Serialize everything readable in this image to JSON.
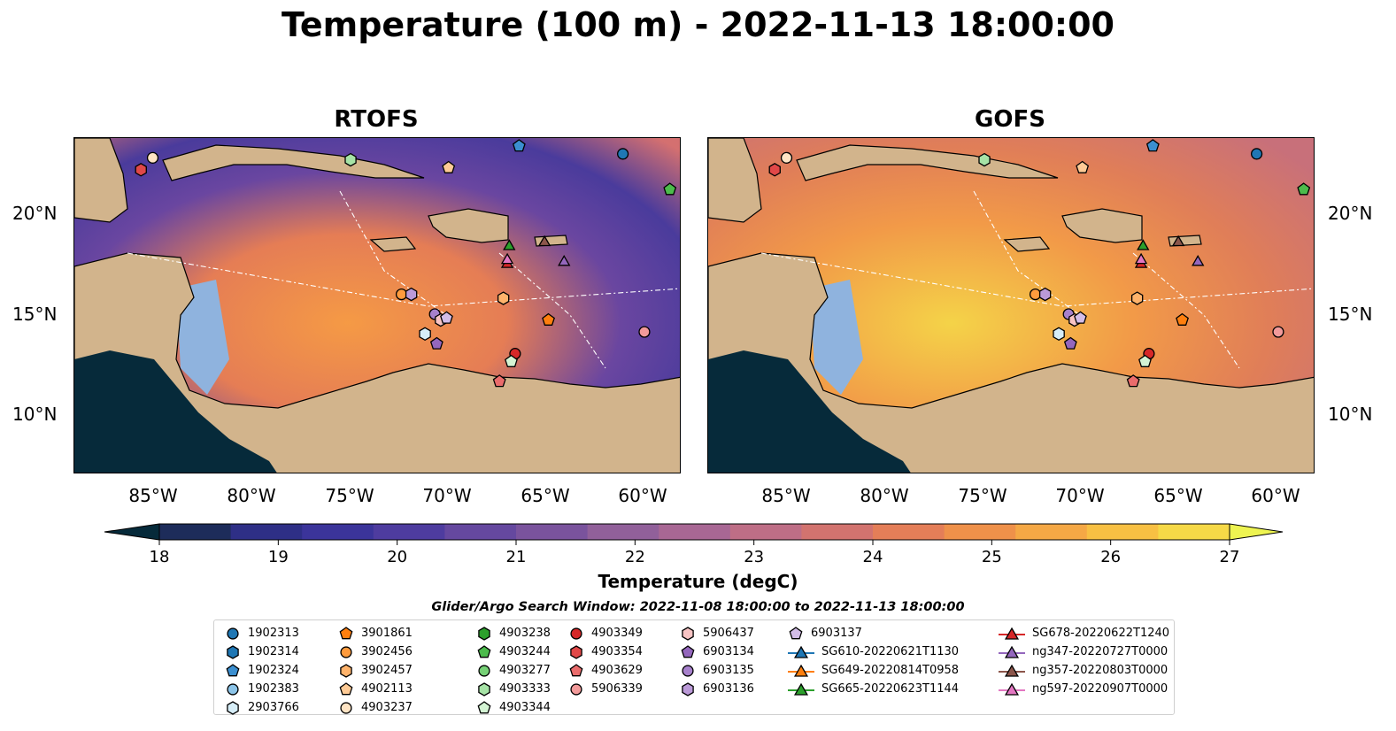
{
  "title": "Temperature (100 m) - 2022-11-13 18:00:00",
  "panels": [
    {
      "title": "RTOFS"
    },
    {
      "title": "GOFS"
    }
  ],
  "lat_labels": [
    "20°N",
    "15°N",
    "10°N"
  ],
  "lon_labels": [
    "85°W",
    "80°W",
    "75°W",
    "70°W",
    "65°W",
    "60°W"
  ],
  "colorbar": {
    "label": "Temperature (degC)",
    "ticks": [
      "18",
      "19",
      "20",
      "21",
      "22",
      "23",
      "24",
      "25",
      "26",
      "27"
    ],
    "range": [
      18,
      27
    ],
    "colors": [
      "#062a3a",
      "#1d2c5a",
      "#2e2f86",
      "#3b349a",
      "#4e3c9f",
      "#65489f",
      "#7a539d",
      "#91609a",
      "#a86794",
      "#be6e86",
      "#d2736f",
      "#e47e58",
      "#ef914a",
      "#f5a845",
      "#f8c043",
      "#f6d947",
      "#eef451"
    ]
  },
  "search_window": "Glider/Argo Search Window: 2022-11-08 18:00:00 to 2022-11-13 18:00:00",
  "legend": [
    {
      "label": "1902313",
      "marker": "circle",
      "color": "#1f77b4"
    },
    {
      "label": "1902314",
      "marker": "hexagon",
      "color": "#1f77b4"
    },
    {
      "label": "1902324",
      "marker": "pentagon",
      "color": "#3b8fd0"
    },
    {
      "label": "1902383",
      "marker": "circle",
      "color": "#8cc4e8"
    },
    {
      "label": "2903766",
      "marker": "hexagon",
      "color": "#d7eef8"
    },
    {
      "label": "3901861",
      "marker": "pentagon",
      "color": "#ff7f0e"
    },
    {
      "label": "3902456",
      "marker": "circle",
      "color": "#ff9b3d"
    },
    {
      "label": "3902457",
      "marker": "hexagon",
      "color": "#ffb36b"
    },
    {
      "label": "4902113",
      "marker": "pentagon",
      "color": "#ffcb96"
    },
    {
      "label": "4903237",
      "marker": "circle",
      "color": "#ffe4c4"
    },
    {
      "label": "4903238",
      "marker": "hexagon",
      "color": "#2ca02c"
    },
    {
      "label": "4903244",
      "marker": "pentagon",
      "color": "#4cbb4c"
    },
    {
      "label": "4903277",
      "marker": "circle",
      "color": "#76d176"
    },
    {
      "label": "4903333",
      "marker": "hexagon",
      "color": "#a6e3a6"
    },
    {
      "label": "4903344",
      "marker": "pentagon",
      "color": "#d4f4d4"
    },
    {
      "label": "4903349",
      "marker": "circle",
      "color": "#d62728"
    },
    {
      "label": "4903354",
      "marker": "hexagon",
      "color": "#e04848"
    },
    {
      "label": "4903629",
      "marker": "pentagon",
      "color": "#ea6c6c"
    },
    {
      "label": "5906339",
      "marker": "circle",
      "color": "#f29a9a"
    },
    {
      "label": "5906437",
      "marker": "hexagon",
      "color": "#f8c4c4"
    },
    {
      "label": "6903134",
      "marker": "pentagon",
      "color": "#9467bd"
    },
    {
      "label": "6903135",
      "marker": "circle",
      "color": "#a781cc"
    },
    {
      "label": "6903136",
      "marker": "hexagon",
      "color": "#bb9ad8"
    },
    {
      "label": "6903137",
      "marker": "pentagon",
      "color": "#d3bde8"
    },
    {
      "label": "SG610-20220621T1130",
      "marker": "triangle",
      "color": "#1f77b4"
    },
    {
      "label": "SG649-20220814T0958",
      "marker": "triangle",
      "color": "#ff7f0e"
    },
    {
      "label": "SG665-20220623T1144",
      "marker": "triangle",
      "color": "#2ca02c"
    },
    {
      "label": "SG678-20220622T1240",
      "marker": "triangle",
      "color": "#d62728"
    },
    {
      "label": "ng347-20220727T0000",
      "marker": "triangle",
      "color": "#9467bd"
    },
    {
      "label": "ng357-20220803T0000",
      "marker": "triangle",
      "color": "#8c564b"
    },
    {
      "label": "ng597-20220907T0000",
      "marker": "triangle",
      "color": "#e377c2"
    }
  ],
  "points": [
    {
      "id": "1902313",
      "lon": -61.0,
      "lat": 23.2
    },
    {
      "id": "1902324",
      "lon": -66.3,
      "lat": 23.6
    },
    {
      "id": "4903237",
      "lon": -85.0,
      "lat": 23.0
    },
    {
      "id": "4903354",
      "lon": -85.6,
      "lat": 22.4
    },
    {
      "id": "4903333",
      "lon": -74.9,
      "lat": 22.9
    },
    {
      "id": "4902113",
      "lon": -69.9,
      "lat": 22.5
    },
    {
      "id": "4903244",
      "lon": -58.6,
      "lat": 21.4
    },
    {
      "id": "3902456",
      "lon": -72.3,
      "lat": 16.1
    },
    {
      "id": "6903136",
      "lon": -71.8,
      "lat": 16.1
    },
    {
      "id": "3902457",
      "lon": -67.1,
      "lat": 15.9
    },
    {
      "id": "6903135",
      "lon": -70.6,
      "lat": 15.1
    },
    {
      "id": "5906437",
      "lon": -70.3,
      "lat": 14.8
    },
    {
      "id": "6903137",
      "lon": -70.0,
      "lat": 14.9
    },
    {
      "id": "2903766",
      "lon": -71.1,
      "lat": 14.1
    },
    {
      "id": "6903134",
      "lon": -70.5,
      "lat": 13.6
    },
    {
      "id": "3901861",
      "lon": -64.8,
      "lat": 14.8
    },
    {
      "id": "5906339",
      "lon": -59.9,
      "lat": 14.2
    },
    {
      "id": "4903349",
      "lon": -66.5,
      "lat": 13.1
    },
    {
      "id": "4903344",
      "lon": -66.7,
      "lat": 12.7
    },
    {
      "id": "4903629",
      "lon": -67.3,
      "lat": 11.7
    },
    {
      "id": "SG665-20220623T1144",
      "lon": -66.8,
      "lat": 18.6
    },
    {
      "id": "ng357-20220803T0000",
      "lon": -65.0,
      "lat": 18.8
    },
    {
      "id": "SG678-20220622T1240",
      "lon": -66.9,
      "lat": 17.7
    },
    {
      "id": "ng597-20220907T0000",
      "lon": -66.9,
      "lat": 17.9
    },
    {
      "id": "ng347-20220727T0000",
      "lon": -64.0,
      "lat": 17.8
    }
  ],
  "extent": {
    "lon": [
      -89,
      -58
    ],
    "lat": [
      7,
      24
    ]
  }
}
